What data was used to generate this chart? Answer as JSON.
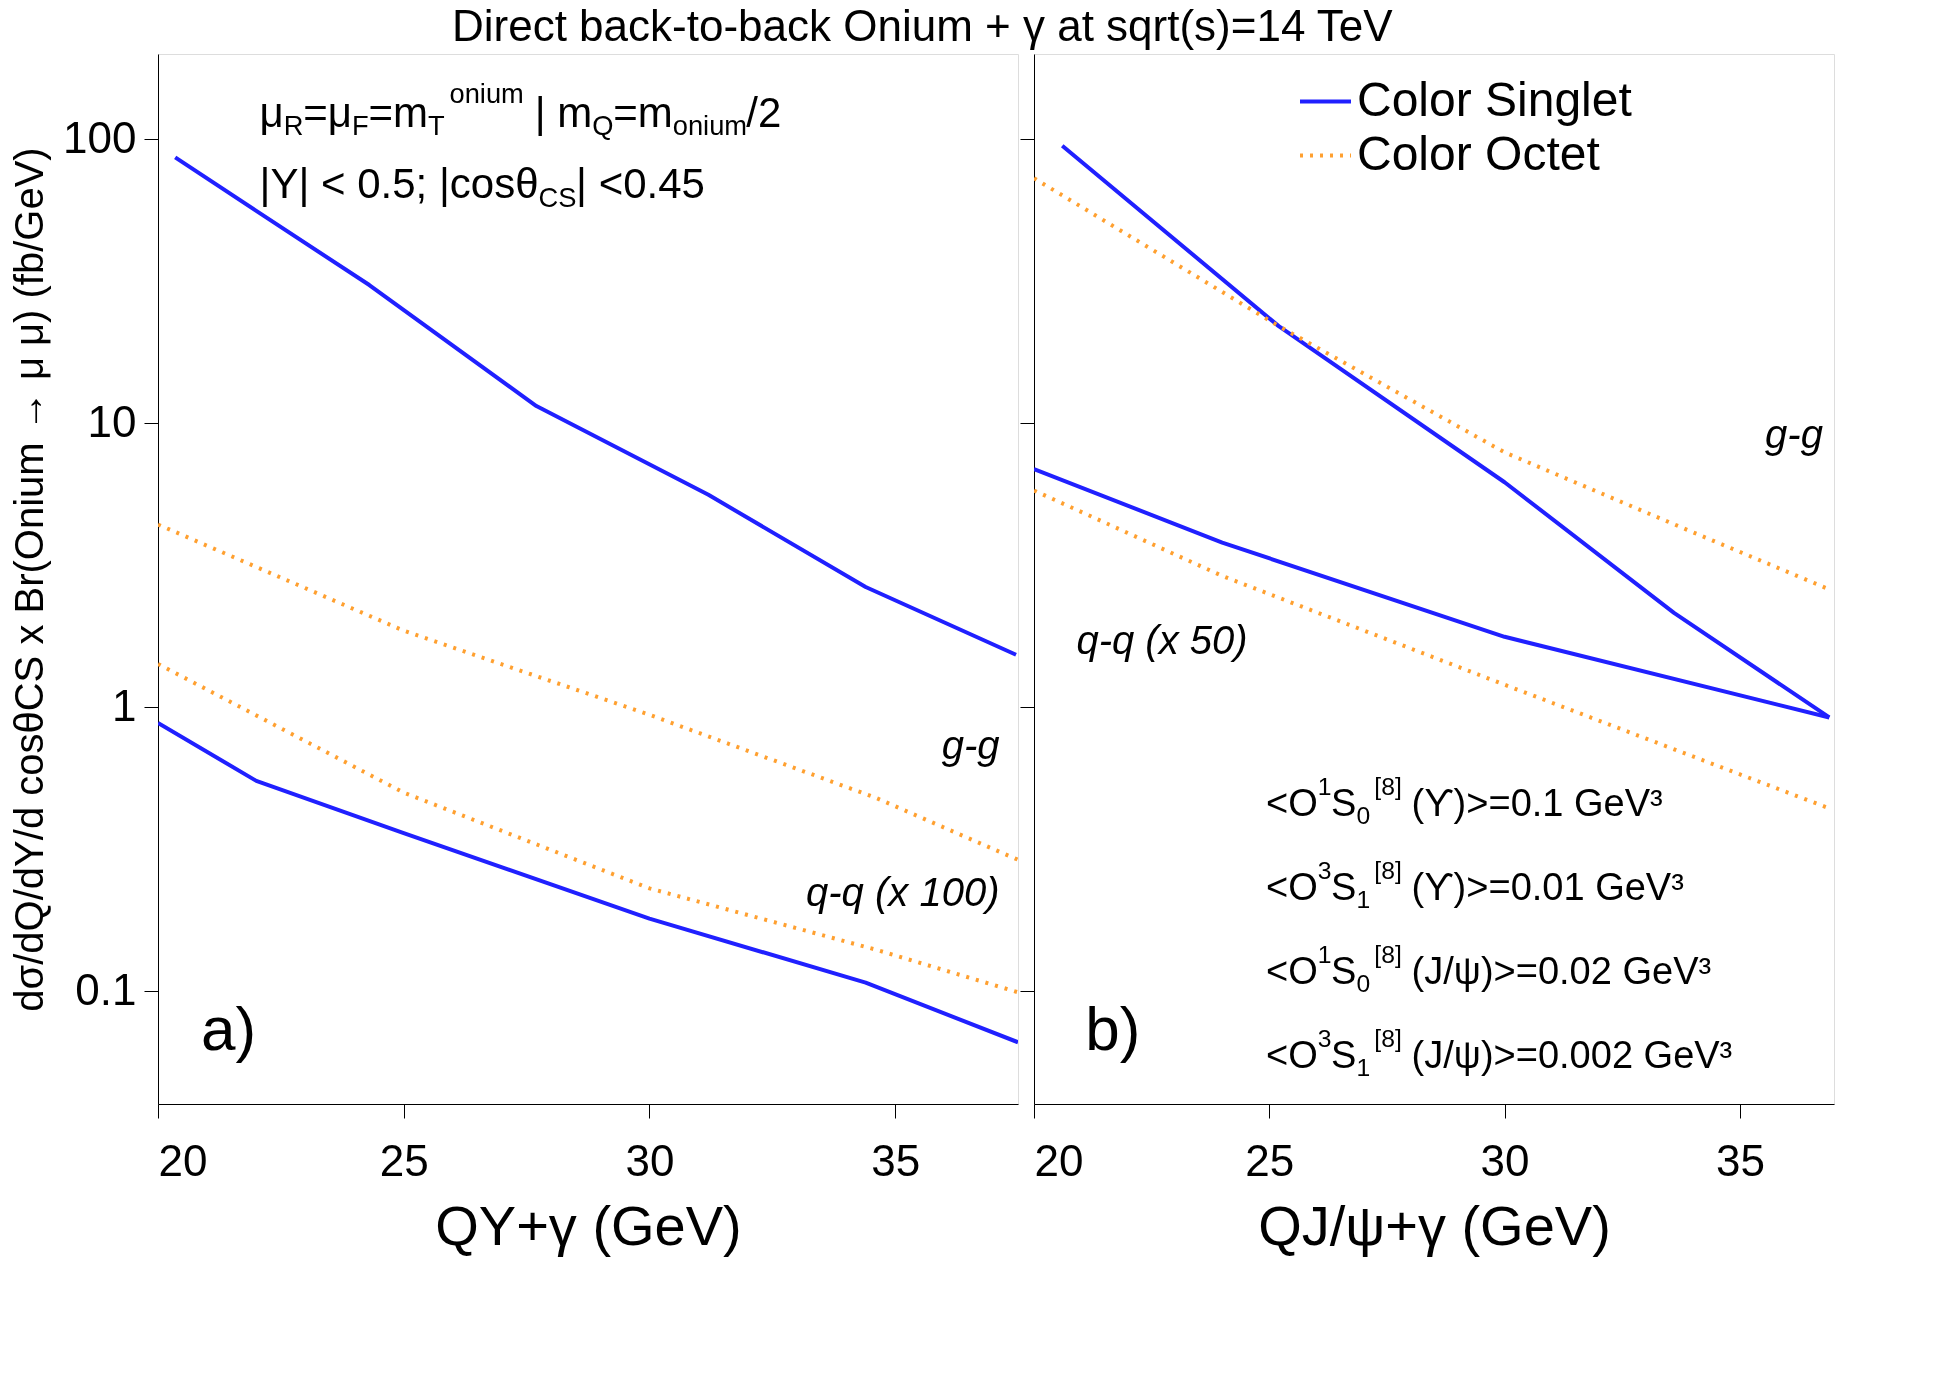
{
  "chart_data": [
    {
      "type": "line",
      "title": "Direct back-to-back Onium + γ at sqrt(s)=14 TeV",
      "xlabel": "QΥ+γ   (GeV)",
      "ylabel": "dσ/dQ/dY/d cosθCS x Br(Onium → μ μ) (fb/GeV)",
      "log": "y",
      "xlim": [
        20,
        37.5
      ],
      "ylim": [
        0.04,
        200
      ],
      "xticks": [
        20,
        25,
        30,
        35
      ],
      "yticks": [
        0.1,
        1,
        10,
        100
      ],
      "grid": false,
      "legend": false,
      "series": [
        {
          "color": "#2020ff",
          "line_style": "solid",
          "x": [
            20.35,
            22,
            24.3,
            27.7,
            31.2,
            34.4,
            37.46
          ],
          "values": [
            86.5,
            56,
            30.7,
            11.5,
            5.6,
            2.65,
            1.53
          ]
        },
        {
          "color": "#ffa030",
          "line_style": "dotted",
          "x": [
            20,
            25,
            30,
            34.6,
            37.5
          ],
          "values": [
            4.4,
            1.86,
            0.94,
            0.48,
            0.29
          ]
        },
        {
          "color": "#ffa030",
          "line_style": "dotted",
          "x": [
            20,
            25,
            30,
            34.6,
            37.5
          ],
          "values": [
            1.42,
            0.5,
            0.23,
            0.14,
            0.099
          ]
        },
        {
          "color": "#2020ff",
          "line_style": "solid",
          "x": [
            20,
            22,
            25,
            30,
            34.4,
            37.5
          ],
          "values": [
            0.88,
            0.55,
            0.36,
            0.18,
            0.107,
            0.066
          ]
        }
      ],
      "annotations": [
        "μ$_{R}$=μ$_{F}$=m$_{T}$$^{onium}$ | m$_{Q}$=m$_{onium}$/2",
        "|Y| < 0.5; |cosθ$_{CS}$| <0.45",
        "a)",
        "g-g",
        "q-q (x 100)"
      ]
    },
    {
      "type": "line",
      "xlabel": "QJ/ψ+γ   (GeV)",
      "log": "y",
      "xlim": [
        20,
        37
      ],
      "ylim": [
        0.04,
        200
      ],
      "xticks": [
        20,
        25,
        30,
        35
      ],
      "yticks": [
        0.1,
        1,
        10,
        100
      ],
      "grid": false,
      "legend": "top right",
      "tick_labels": "x",
      "series": [
        {
          "name": "Color Singlet",
          "color": "#2020ff",
          "line_style": "solid",
          "x": [
            20.6,
            25.2,
            30,
            33.6,
            36.9
          ],
          "values": [
            95,
            22,
            6.2,
            2.15,
            0.92
          ]
        },
        {
          "name": "Color Octet",
          "color": "#ffa030",
          "line_style": "dotted",
          "x": [
            20,
            25.2,
            30,
            33.9,
            36.9
          ],
          "values": [
            73,
            22,
            7.9,
            4.2,
            2.6
          ]
        },
        {
          "color": "#2020ff",
          "line_style": "solid",
          "x": [
            20,
            24,
            30,
            36.9
          ],
          "values": [
            6.9,
            3.8,
            1.77,
            0.92
          ]
        },
        {
          "color": "#ffa030",
          "line_style": "dotted",
          "x": [
            20,
            24,
            30,
            36.9
          ],
          "values": [
            5.8,
            2.9,
            1.2,
            0.44
          ]
        }
      ],
      "annotations": [
        "b)",
        "<O$^{1}$S$_{0}$$^{[8]}$ (ϒ)>=0.1 GeV³",
        "<O$^{3}$S$_{1}$$^{[8]}$ (ϒ)>=0.01 GeV³",
        "<O$^{1}$S$_{0}$$^{[8]}$ (J/ψ)>=0.02 GeV³",
        "<O$^{3}$S$_{1}$$^{[8]}$ (J/ψ)>=0.002 GeV³",
        "g-g",
        "q-q (x 50)"
      ]
    }
  ]
}
